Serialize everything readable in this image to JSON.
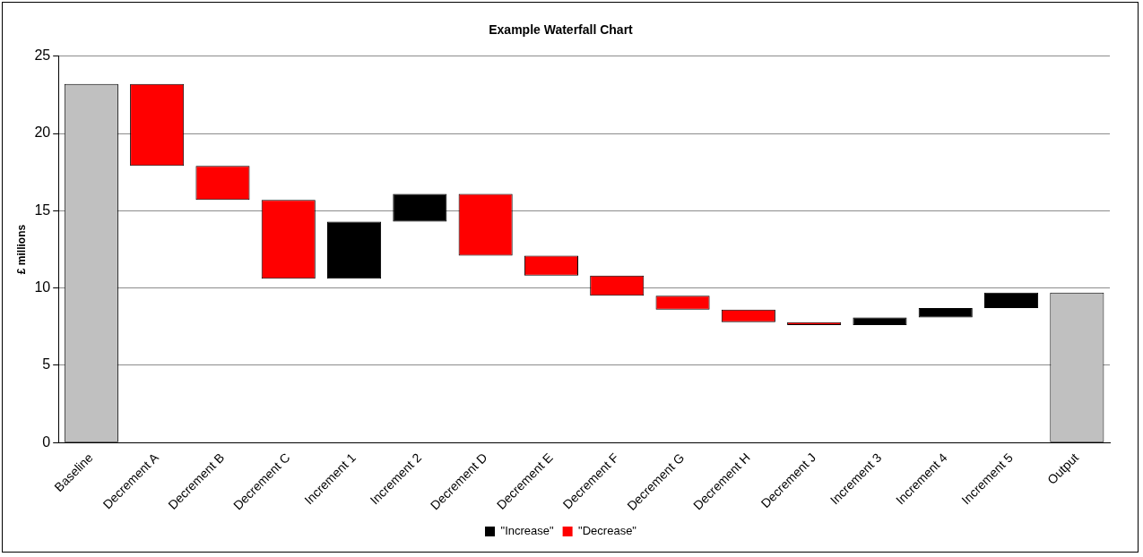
{
  "chart_data": {
    "type": "bar",
    "title": "Example Waterfall Chart",
    "ylabel": "£ millions",
    "categories": [
      "Baseline",
      "Decrement A",
      "Decrement B",
      "Decrement C",
      "Increment 1",
      "Increment 2",
      "Decrement D",
      "Decrement E",
      "Decrement F",
      "Decrement G",
      "Decrement H",
      "Decrement J",
      "Increment 3",
      "Increment 4",
      "Increment 5",
      "Output"
    ],
    "series": [
      {
        "color": "#c0c0c0",
        "base": [
          0,
          null,
          null,
          null,
          null,
          null,
          null,
          null,
          null,
          null,
          null,
          null,
          null,
          null,
          null,
          0
        ],
        "values": [
          23.2,
          null,
          null,
          null,
          null,
          null,
          null,
          null,
          null,
          null,
          null,
          null,
          null,
          null,
          null,
          9.7
        ]
      },
      {
        "name": "\"Increase\"",
        "color": "#000000",
        "base": [
          null,
          null,
          null,
          null,
          10.6,
          14.3,
          null,
          null,
          null,
          null,
          null,
          null,
          7.6,
          8.1,
          8.7,
          null
        ],
        "values": [
          null,
          null,
          null,
          null,
          3.7,
          1.8,
          null,
          null,
          null,
          null,
          null,
          null,
          0.5,
          0.6,
          1.0,
          null
        ]
      },
      {
        "name": "\"Decrease\"",
        "color": "#ff0000",
        "base": [
          null,
          23.2,
          17.9,
          15.7,
          null,
          null,
          16.1,
          12.1,
          10.8,
          9.5,
          8.6,
          7.8,
          null,
          null,
          null,
          null
        ],
        "values": [
          null,
          -5.3,
          -2.2,
          -5.1,
          null,
          null,
          -4.0,
          -1.3,
          -1.3,
          -0.9,
          -0.8,
          -0.2,
          null,
          null,
          null,
          null
        ]
      }
    ],
    "ylim": [
      0,
      25
    ],
    "yticks": [
      0,
      5,
      10,
      15,
      20,
      25
    ],
    "grid": "y",
    "legend": "bottom"
  }
}
